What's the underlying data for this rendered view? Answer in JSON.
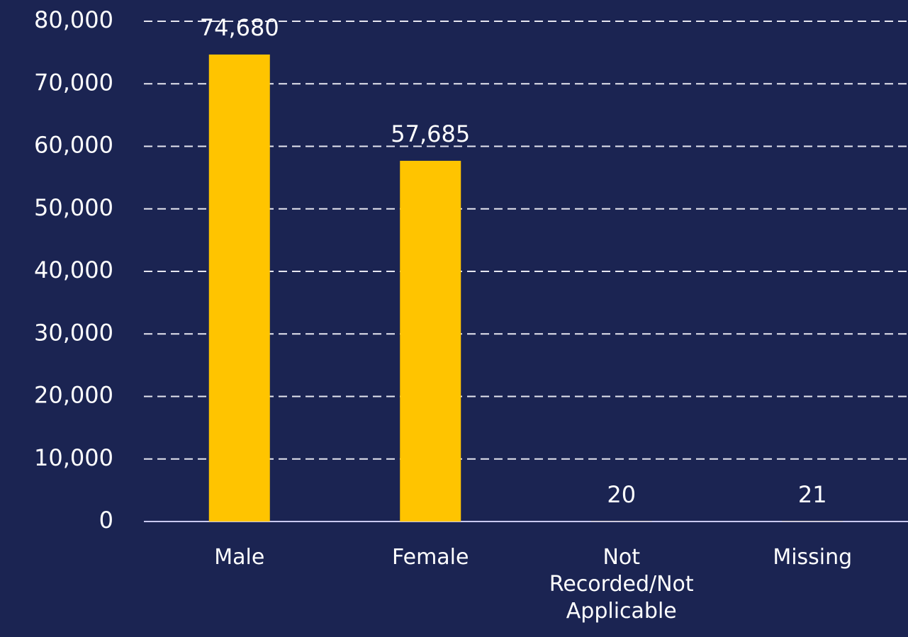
{
  "chart_data": {
    "type": "bar",
    "categories": [
      "Male",
      "Female",
      "Not Recorded/Not Applicable",
      "Missing"
    ],
    "values": [
      74680,
      57685,
      20,
      21
    ],
    "value_labels": [
      "74,680",
      "57,685",
      "20",
      "21"
    ],
    "color": "#ffc400",
    "ylim": [
      0,
      80000
    ],
    "yticks": [
      0,
      {
        "value": 10000,
        "label": "10,000"
      },
      {
        "value": 20000,
        "label": "20,000"
      },
      {
        "value": 30000,
        "label": "30,000"
      },
      {
        "value": 40000,
        "label": "40,000"
      },
      {
        "value": 50000,
        "label": "50,000"
      },
      {
        "value": 60000,
        "label": "60,000"
      },
      {
        "value": 70000,
        "label": "70,000"
      },
      {
        "value": 80000,
        "label": "80,000"
      }
    ],
    "grid": true
  }
}
